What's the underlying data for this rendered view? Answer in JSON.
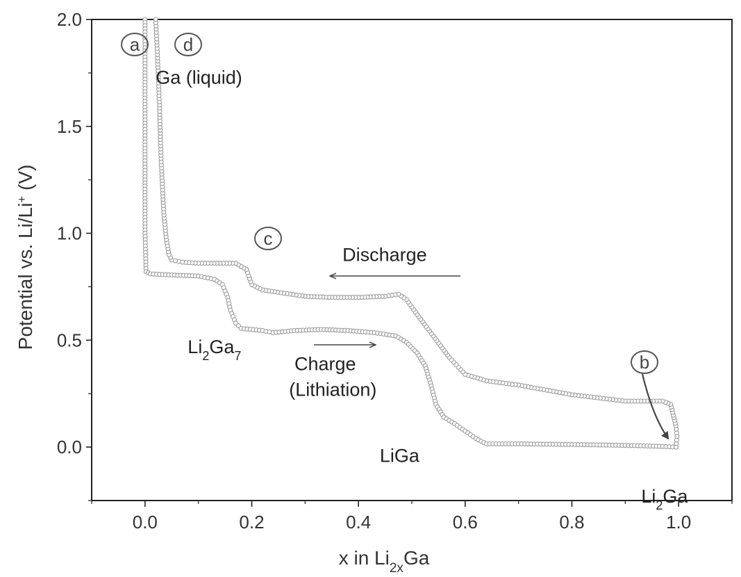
{
  "chart_data": {
    "type": "line",
    "xlabel_main": "x in Li",
    "xlabel_sub": "2x",
    "xlabel_tail": "Ga",
    "ylabel_main": "Potential vs. Li/Li",
    "ylabel_sup": "+",
    "ylabel_tail": " (V)",
    "xlim": [
      -0.1,
      1.1
    ],
    "ylim": [
      -0.25,
      2.0
    ],
    "x_ticks": [
      0.0,
      0.2,
      0.4,
      0.6,
      0.8,
      1.0
    ],
    "x_tick_labels": [
      "0.0",
      "0.2",
      "0.4",
      "0.6",
      "0.8",
      "1.0"
    ],
    "y_ticks": [
      0.0,
      0.5,
      1.0,
      1.5,
      2.0
    ],
    "y_tick_labels": [
      "0.0",
      "0.5",
      "1.0",
      "1.5",
      "2.0"
    ],
    "grid": false,
    "series": [
      {
        "role": "charge",
        "marker": "open-circle",
        "points": [
          [
            0.0,
            2.0
          ],
          [
            0.0,
            1.5
          ],
          [
            0.0,
            1.0
          ],
          [
            0.002,
            0.82
          ],
          [
            0.01,
            0.81
          ],
          [
            0.05,
            0.805
          ],
          [
            0.1,
            0.8
          ],
          [
            0.13,
            0.785
          ],
          [
            0.145,
            0.76
          ],
          [
            0.155,
            0.7
          ],
          [
            0.16,
            0.64
          ],
          [
            0.17,
            0.58
          ],
          [
            0.18,
            0.555
          ],
          [
            0.22,
            0.545
          ],
          [
            0.24,
            0.535
          ],
          [
            0.28,
            0.545
          ],
          [
            0.33,
            0.55
          ],
          [
            0.38,
            0.545
          ],
          [
            0.43,
            0.535
          ],
          [
            0.47,
            0.52
          ],
          [
            0.49,
            0.49
          ],
          [
            0.51,
            0.44
          ],
          [
            0.525,
            0.38
          ],
          [
            0.535,
            0.3
          ],
          [
            0.545,
            0.2
          ],
          [
            0.56,
            0.14
          ],
          [
            0.58,
            0.11
          ],
          [
            0.6,
            0.075
          ],
          [
            0.62,
            0.04
          ],
          [
            0.64,
            0.015
          ],
          [
            0.7,
            0.015
          ],
          [
            0.8,
            0.012
          ],
          [
            0.9,
            0.008
          ],
          [
            0.97,
            0.003
          ],
          [
            0.995,
            0.0
          ]
        ]
      },
      {
        "role": "discharge",
        "marker": "open-circle",
        "points": [
          [
            0.995,
            0.0
          ],
          [
            0.997,
            0.05
          ],
          [
            0.995,
            0.1
          ],
          [
            0.99,
            0.15
          ],
          [
            0.985,
            0.2
          ],
          [
            0.97,
            0.215
          ],
          [
            0.9,
            0.215
          ],
          [
            0.8,
            0.245
          ],
          [
            0.7,
            0.29
          ],
          [
            0.64,
            0.31
          ],
          [
            0.6,
            0.34
          ],
          [
            0.57,
            0.42
          ],
          [
            0.54,
            0.52
          ],
          [
            0.51,
            0.62
          ],
          [
            0.49,
            0.69
          ],
          [
            0.475,
            0.715
          ],
          [
            0.45,
            0.705
          ],
          [
            0.4,
            0.7
          ],
          [
            0.35,
            0.7
          ],
          [
            0.3,
            0.705
          ],
          [
            0.26,
            0.72
          ],
          [
            0.22,
            0.735
          ],
          [
            0.2,
            0.76
          ],
          [
            0.19,
            0.83
          ],
          [
            0.17,
            0.86
          ],
          [
            0.1,
            0.86
          ],
          [
            0.07,
            0.865
          ],
          [
            0.05,
            0.875
          ],
          [
            0.045,
            0.9
          ],
          [
            0.04,
            0.97
          ],
          [
            0.035,
            1.1
          ],
          [
            0.03,
            1.35
          ],
          [
            0.027,
            1.6
          ],
          [
            0.023,
            1.85
          ],
          [
            0.02,
            2.0
          ]
        ]
      }
    ],
    "arrow_b_target": [
      0.985,
      0.025
    ],
    "annotations": [
      {
        "text": "Ga (liquid)",
        "x": 0.02,
        "y": 1.7
      },
      {
        "text": "Discharge",
        "x": 0.37,
        "y": 0.87
      },
      {
        "text": "Charge",
        "x": 0.28,
        "y": 0.36
      },
      {
        "text": "(Lithiation)",
        "x": 0.27,
        "y": 0.24
      },
      {
        "text": "LiGa",
        "x": 0.44,
        "y": -0.07
      },
      {
        "text_main": "Li",
        "text_sub": "2",
        "text_tail": "Ga7",
        "x": 0.08,
        "y": 0.44
      },
      {
        "text_main": "Li",
        "text_sub": "2",
        "text_tail": "Ga",
        "x": 0.93,
        "y": -0.26
      }
    ],
    "circled_labels": [
      "a",
      "d",
      "c",
      "b"
    ]
  }
}
